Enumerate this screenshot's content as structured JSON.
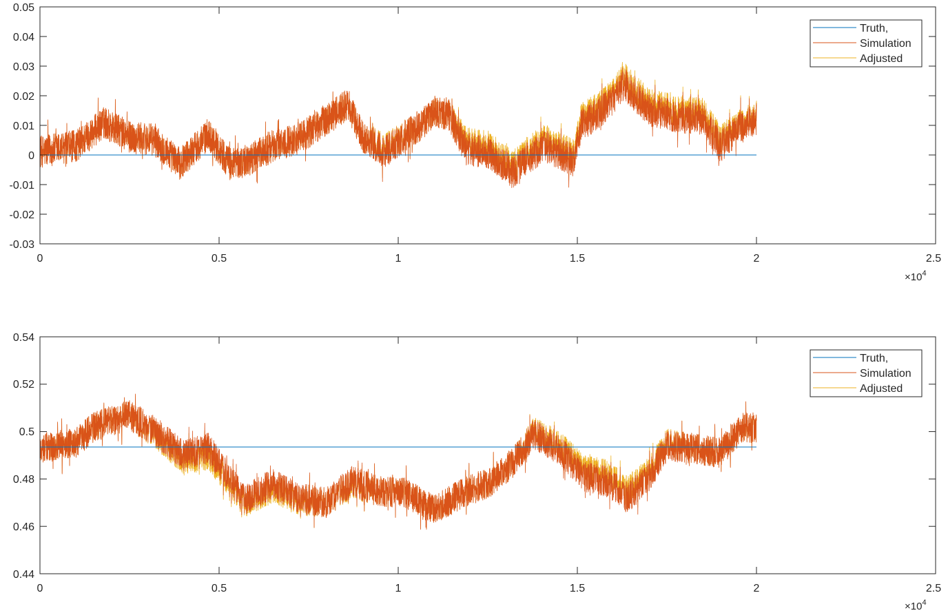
{
  "colors": {
    "truth": "#0072BD",
    "simulation": "#D95319",
    "adjusted": "#EDB120",
    "axis": "#262626"
  },
  "chart_data": [
    {
      "type": "line",
      "xlim": [
        0,
        25000
      ],
      "ylim": [
        -0.03,
        0.05
      ],
      "x_exponent_label": "×10",
      "x_exponent_power": "4",
      "xticks": [
        0,
        5000,
        10000,
        15000,
        20000,
        25000
      ],
      "xtick_labels": [
        "0",
        "0.5",
        "1",
        "1.5",
        "2",
        "2.5"
      ],
      "yticks": [
        -0.03,
        -0.02,
        -0.01,
        0,
        0.01,
        0.02,
        0.03,
        0.04,
        0.05
      ],
      "ytick_labels": [
        "-0.03",
        "-0.02",
        "-0.01",
        "0",
        "0.01",
        "0.02",
        "0.03",
        "0.04",
        "0.05"
      ],
      "legend": [
        "Truth,",
        "Simulation",
        "Adjusted"
      ],
      "legend_position": "top-right",
      "grid": false,
      "noise": 0.0055,
      "series": [
        {
          "name": "Truth,",
          "x": [
            0,
            20000
          ],
          "y": [
            0,
            0
          ]
        },
        {
          "name": "Simulation",
          "x": [
            0,
            1000,
            1800,
            2500,
            3200,
            3900,
            4700,
            5300,
            5800,
            6500,
            7300,
            8000,
            8600,
            9000,
            9600,
            10400,
            11000,
            11400,
            11900,
            12500,
            13200,
            13600,
            14100,
            14900,
            15100,
            15800,
            16300,
            17000,
            17800,
            18500,
            19000,
            19500,
            20000
          ],
          "y": [
            0.001,
            0.003,
            0.011,
            0.006,
            0.005,
            -0.003,
            0.007,
            -0.003,
            -0.002,
            0.003,
            0.006,
            0.012,
            0.017,
            0.006,
            0.001,
            0.008,
            0.014,
            0.014,
            0.002,
            0.001,
            -0.006,
            -0.001,
            0.003,
            -0.002,
            0.01,
            0.016,
            0.024,
            0.015,
            0.013,
            0.012,
            0.003,
            0.009,
            0.012
          ]
        },
        {
          "name": "Adjusted",
          "x": [
            0,
            1000,
            1800,
            2500,
            3200,
            3900,
            4700,
            5300,
            5800,
            6500,
            7300,
            8000,
            8600,
            9000,
            9600,
            10400,
            11000,
            11400,
            11900,
            12500,
            13200,
            13600,
            14100,
            14900,
            15100,
            15800,
            16300,
            17000,
            17800,
            18500,
            19000,
            19500,
            20000
          ],
          "y": [
            0.001,
            0.003,
            0.011,
            0.006,
            0.005,
            -0.003,
            0.007,
            -0.003,
            -0.002,
            0.003,
            0.006,
            0.012,
            0.017,
            0.006,
            0.002,
            0.008,
            0.014,
            0.014,
            0.004,
            0.003,
            -0.004,
            0.001,
            0.005,
            0.0,
            0.012,
            0.018,
            0.026,
            0.017,
            0.015,
            0.014,
            0.005,
            0.01,
            0.013
          ]
        }
      ]
    },
    {
      "type": "line",
      "xlim": [
        0,
        25000
      ],
      "ylim": [
        0.44,
        0.54
      ],
      "x_exponent_label": "×10",
      "x_exponent_power": "4",
      "xticks": [
        0,
        5000,
        10000,
        15000,
        20000,
        25000
      ],
      "xtick_labels": [
        "0",
        "0.5",
        "1",
        "1.5",
        "2",
        "2.5"
      ],
      "yticks": [
        0.44,
        0.46,
        0.48,
        0.5,
        0.52,
        0.54
      ],
      "ytick_labels": [
        "0.44",
        "0.46",
        "0.48",
        "0.5",
        "0.52",
        "0.54"
      ],
      "legend": [
        "Truth,",
        "Simulation",
        "Adjusted"
      ],
      "legend_position": "top-right",
      "grid": false,
      "noise": 0.0065,
      "series": [
        {
          "name": "Truth,",
          "x": [
            0,
            20000
          ],
          "y": [
            0.4935,
            0.4935
          ]
        },
        {
          "name": "Simulation",
          "x": [
            0,
            1000,
            1500,
            2500,
            3300,
            4000,
            4700,
            5200,
            5700,
            6500,
            7200,
            8000,
            8700,
            9400,
            10200,
            11000,
            11800,
            12600,
            13200,
            13800,
            14500,
            15200,
            15800,
            16400,
            17000,
            17500,
            18200,
            19000,
            19600,
            20000
          ],
          "y": [
            0.493,
            0.495,
            0.502,
            0.507,
            0.499,
            0.49,
            0.493,
            0.482,
            0.471,
            0.478,
            0.472,
            0.47,
            0.479,
            0.475,
            0.474,
            0.467,
            0.474,
            0.479,
            0.487,
            0.499,
            0.492,
            0.481,
            0.479,
            0.472,
            0.481,
            0.494,
            0.493,
            0.491,
            0.502,
            0.501
          ]
        },
        {
          "name": "Adjusted",
          "x": [
            0,
            1000,
            1500,
            2500,
            3300,
            4000,
            4700,
            5200,
            5700,
            6500,
            7200,
            8000,
            8700,
            9400,
            10200,
            11000,
            11800,
            12600,
            13200,
            13800,
            14500,
            15200,
            15800,
            16400,
            17000,
            17500,
            18200,
            19000,
            19600,
            20000
          ],
          "y": [
            0.493,
            0.495,
            0.502,
            0.507,
            0.498,
            0.488,
            0.49,
            0.48,
            0.47,
            0.476,
            0.471,
            0.47,
            0.478,
            0.475,
            0.474,
            0.467,
            0.474,
            0.479,
            0.487,
            0.5,
            0.494,
            0.484,
            0.482,
            0.475,
            0.483,
            0.495,
            0.493,
            0.491,
            0.502,
            0.501
          ]
        }
      ]
    }
  ]
}
